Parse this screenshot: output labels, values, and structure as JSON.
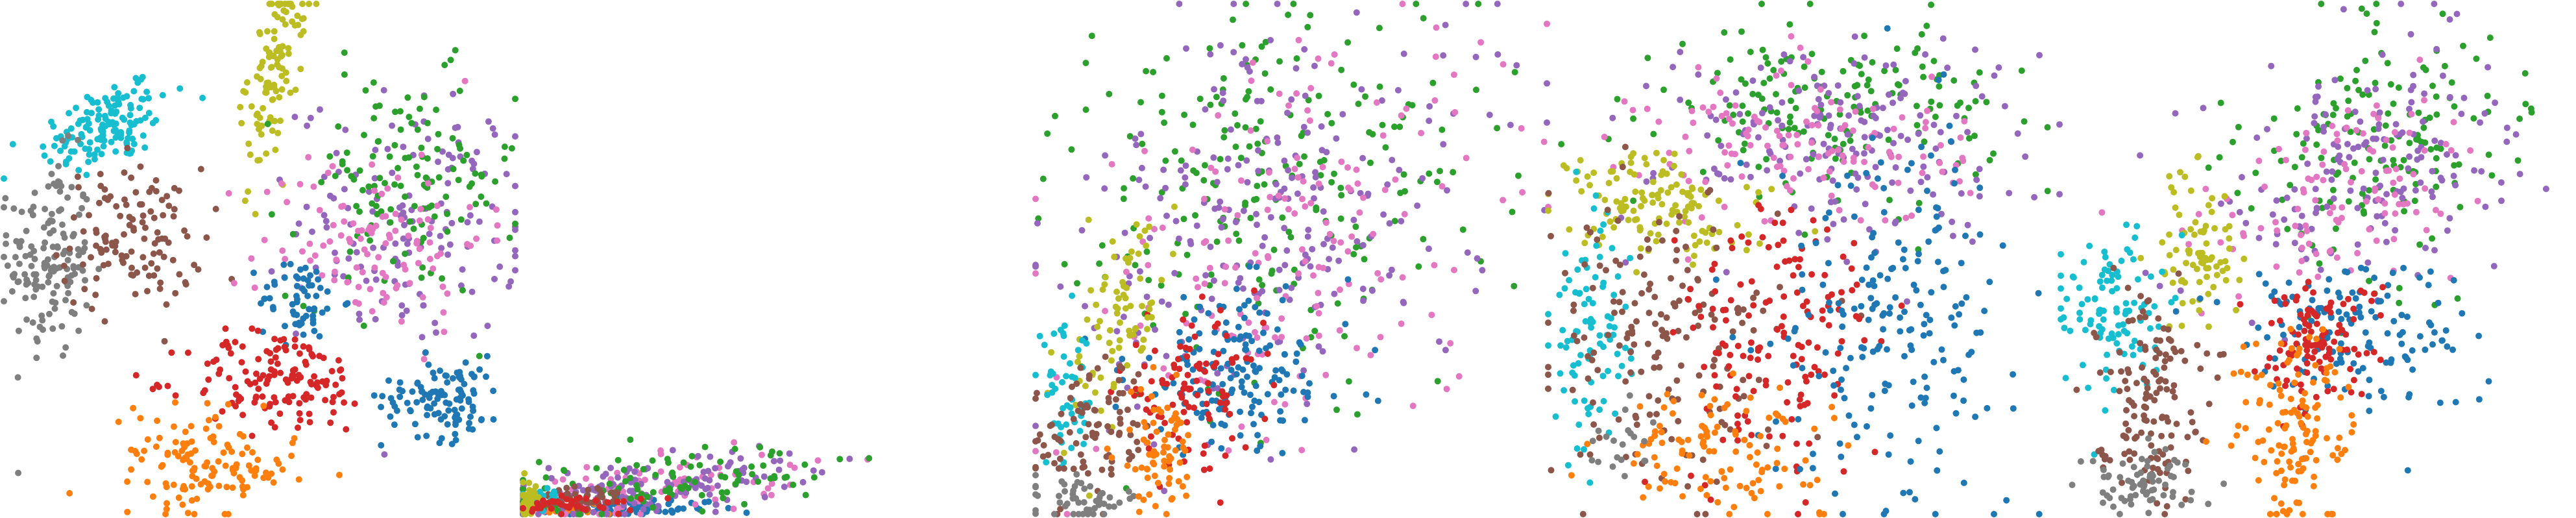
{
  "chart_data": [
    {
      "type": "scatter",
      "title": "",
      "xlabel": "",
      "ylabel": "",
      "grid": false,
      "legend": "none",
      "axes": "hidden",
      "xlim": [
        0,
        100
      ],
      "ylim": [
        0,
        100
      ],
      "clusters": [
        {
          "color": "#17becf",
          "n": 140,
          "cx": 20,
          "cy": 76,
          "sx": 7,
          "sy": 4,
          "angle": 25
        },
        {
          "color": "#7f7f7f",
          "n": 150,
          "cx": 9,
          "cy": 50,
          "sx": 4,
          "sy": 10,
          "angle": 0
        },
        {
          "color": "#8c564b",
          "n": 120,
          "cx": 25,
          "cy": 54,
          "sx": 7,
          "sy": 7,
          "angle": 0
        },
        {
          "color": "#bcbd22",
          "n": 110,
          "cx": 53,
          "cy": 86,
          "sx": 2.5,
          "sy": 10,
          "angle": -8
        },
        {
          "color": "#9467bd",
          "n": 150,
          "cx": 80,
          "cy": 58,
          "sx": 11,
          "sy": 12,
          "angle": 0
        },
        {
          "color": "#2ca02c",
          "n": 130,
          "cx": 78,
          "cy": 64,
          "sx": 11,
          "sy": 11,
          "angle": 0
        },
        {
          "color": "#e377c2",
          "n": 110,
          "cx": 72,
          "cy": 54,
          "sx": 11,
          "sy": 9,
          "angle": 0
        },
        {
          "color": "#1f77b4",
          "n": 60,
          "cx": 58,
          "cy": 42,
          "sx": 4,
          "sy": 4,
          "angle": 0
        },
        {
          "color": "#d62728",
          "n": 140,
          "cx": 54,
          "cy": 26,
          "sx": 9,
          "sy": 5,
          "angle": 0
        },
        {
          "color": "#1f77b4",
          "n": 110,
          "cx": 86,
          "cy": 23,
          "sx": 6,
          "sy": 4,
          "angle": 0
        },
        {
          "color": "#ff7f0e",
          "n": 130,
          "cx": 40,
          "cy": 10,
          "sx": 8,
          "sy": 5,
          "angle": -10
        }
      ]
    },
    {
      "type": "scatter",
      "title": "",
      "xlabel": "",
      "ylabel": "",
      "grid": false,
      "legend": "none",
      "axes": "hidden",
      "xlim": [
        0,
        100
      ],
      "ylim": [
        0,
        100
      ],
      "clusters": [
        {
          "color": "#1f77b4",
          "n": 110,
          "cx": 22,
          "cy": 4,
          "sx": 16,
          "sy": 2.5,
          "angle": 0
        },
        {
          "color": "#ff7f0e",
          "n": 20,
          "cx": 10,
          "cy": 3,
          "sx": 6,
          "sy": 2,
          "angle": 0
        },
        {
          "color": "#e377c2",
          "n": 110,
          "cx": 30,
          "cy": 14,
          "sx": 22,
          "sy": 8,
          "angle": 18
        },
        {
          "color": "#9467bd",
          "n": 130,
          "cx": 32,
          "cy": 16,
          "sx": 22,
          "sy": 8,
          "angle": 18
        },
        {
          "color": "#2ca02c",
          "n": 100,
          "cx": 36,
          "cy": 20,
          "sx": 22,
          "sy": 9,
          "angle": 22
        },
        {
          "color": "#8c564b",
          "n": 50,
          "cx": 14,
          "cy": 9,
          "sx": 6,
          "sy": 5,
          "angle": 0
        },
        {
          "color": "#17becf",
          "n": 20,
          "cx": 6,
          "cy": 10,
          "sx": 3,
          "sy": 4,
          "angle": 0
        },
        {
          "color": "#bcbd22",
          "n": 40,
          "cx": 1.5,
          "cy": 8,
          "sx": 1,
          "sy": 6,
          "angle": 0
        },
        {
          "color": "#d62728",
          "n": 40,
          "cx": 15,
          "cy": 6,
          "sx": 8,
          "sy": 3,
          "angle": 0
        }
      ]
    },
    {
      "type": "scatter",
      "title": "",
      "xlabel": "",
      "ylabel": "",
      "grid": false,
      "legend": "none",
      "axes": "hidden",
      "xlim": [
        0,
        100
      ],
      "ylim": [
        0,
        100
      ],
      "clusters": [
        {
          "color": "#2ca02c",
          "n": 220,
          "cx": 45,
          "cy": 66,
          "sx": 22,
          "sy": 18,
          "angle": 38
        },
        {
          "color": "#9467bd",
          "n": 240,
          "cx": 46,
          "cy": 58,
          "sx": 24,
          "sy": 18,
          "angle": 38
        },
        {
          "color": "#e377c2",
          "n": 170,
          "cx": 50,
          "cy": 52,
          "sx": 24,
          "sy": 16,
          "angle": 35
        },
        {
          "color": "#1f77b4",
          "n": 160,
          "cx": 40,
          "cy": 28,
          "sx": 11,
          "sy": 8,
          "angle": 0
        },
        {
          "color": "#d62728",
          "n": 100,
          "cx": 30,
          "cy": 24,
          "sx": 7,
          "sy": 7,
          "angle": 0
        },
        {
          "color": "#bcbd22",
          "n": 80,
          "cx": 16,
          "cy": 38,
          "sx": 4,
          "sy": 10,
          "angle": -20
        },
        {
          "color": "#17becf",
          "n": 50,
          "cx": 6,
          "cy": 22,
          "sx": 3,
          "sy": 7,
          "angle": 0
        },
        {
          "color": "#8c564b",
          "n": 90,
          "cx": 11,
          "cy": 16,
          "sx": 6,
          "sy": 7,
          "angle": 0
        },
        {
          "color": "#7f7f7f",
          "n": 50,
          "cx": 9,
          "cy": 3,
          "sx": 6,
          "sy": 2,
          "angle": 0
        },
        {
          "color": "#ff7f0e",
          "n": 70,
          "cx": 24,
          "cy": 12,
          "sx": 4,
          "sy": 6,
          "angle": 0
        }
      ]
    },
    {
      "type": "scatter",
      "title": "",
      "xlabel": "",
      "ylabel": "",
      "grid": false,
      "legend": "none",
      "axes": "hidden",
      "xlim": [
        0,
        100
      ],
      "ylim": [
        0,
        100
      ],
      "clusters": [
        {
          "color": "#2ca02c",
          "n": 170,
          "cx": 56,
          "cy": 80,
          "sx": 16,
          "sy": 8,
          "angle": 0
        },
        {
          "color": "#9467bd",
          "n": 180,
          "cx": 58,
          "cy": 74,
          "sx": 18,
          "sy": 10,
          "angle": 0
        },
        {
          "color": "#e377c2",
          "n": 130,
          "cx": 50,
          "cy": 72,
          "sx": 16,
          "sy": 8,
          "angle": 0
        },
        {
          "color": "#bcbd22",
          "n": 130,
          "cx": 22,
          "cy": 60,
          "sx": 10,
          "sy": 5,
          "angle": -12
        },
        {
          "color": "#17becf",
          "n": 90,
          "cx": 8,
          "cy": 34,
          "sx": 4,
          "sy": 12,
          "angle": 0
        },
        {
          "color": "#8c564b",
          "n": 170,
          "cx": 22,
          "cy": 34,
          "sx": 12,
          "sy": 14,
          "angle": 0
        },
        {
          "color": "#d62728",
          "n": 150,
          "cx": 45,
          "cy": 34,
          "sx": 10,
          "sy": 14,
          "angle": 0
        },
        {
          "color": "#1f77b4",
          "n": 200,
          "cx": 68,
          "cy": 40,
          "sx": 12,
          "sy": 18,
          "angle": 0
        },
        {
          "color": "#ff7f0e",
          "n": 110,
          "cx": 34,
          "cy": 12,
          "sx": 10,
          "sy": 6,
          "angle": 0
        },
        {
          "color": "#7f7f7f",
          "n": 20,
          "cx": 12,
          "cy": 14,
          "sx": 4,
          "sy": 4,
          "angle": 0
        }
      ]
    },
    {
      "type": "scatter",
      "title": "",
      "xlabel": "",
      "ylabel": "",
      "grid": false,
      "legend": "none",
      "axes": "hidden",
      "xlim": [
        0,
        100
      ],
      "ylim": [
        0,
        100
      ],
      "clusters": [
        {
          "color": "#2ca02c",
          "n": 160,
          "cx": 62,
          "cy": 72,
          "sx": 14,
          "sy": 12,
          "angle": 30
        },
        {
          "color": "#9467bd",
          "n": 170,
          "cx": 60,
          "cy": 68,
          "sx": 15,
          "sy": 12,
          "angle": 30
        },
        {
          "color": "#e377c2",
          "n": 110,
          "cx": 58,
          "cy": 63,
          "sx": 14,
          "sy": 10,
          "angle": 30
        },
        {
          "color": "#bcbd22",
          "n": 80,
          "cx": 27,
          "cy": 52,
          "sx": 4,
          "sy": 8,
          "angle": 0
        },
        {
          "color": "#17becf",
          "n": 110,
          "cx": 10,
          "cy": 40,
          "sx": 5,
          "sy": 8,
          "angle": 0
        },
        {
          "color": "#8c564b",
          "n": 140,
          "cx": 17,
          "cy": 24,
          "sx": 5,
          "sy": 10,
          "angle": 0
        },
        {
          "color": "#7f7f7f",
          "n": 70,
          "cx": 16,
          "cy": 6,
          "sx": 6,
          "sy": 3,
          "angle": 0
        },
        {
          "color": "#1f77b4",
          "n": 140,
          "cx": 56,
          "cy": 36,
          "sx": 12,
          "sy": 8,
          "angle": 0
        },
        {
          "color": "#d62728",
          "n": 110,
          "cx": 50,
          "cy": 34,
          "sx": 6,
          "sy": 6,
          "angle": 0
        },
        {
          "color": "#ff7f0e",
          "n": 130,
          "cx": 46,
          "cy": 16,
          "sx": 6,
          "sy": 10,
          "angle": 0
        }
      ]
    }
  ]
}
